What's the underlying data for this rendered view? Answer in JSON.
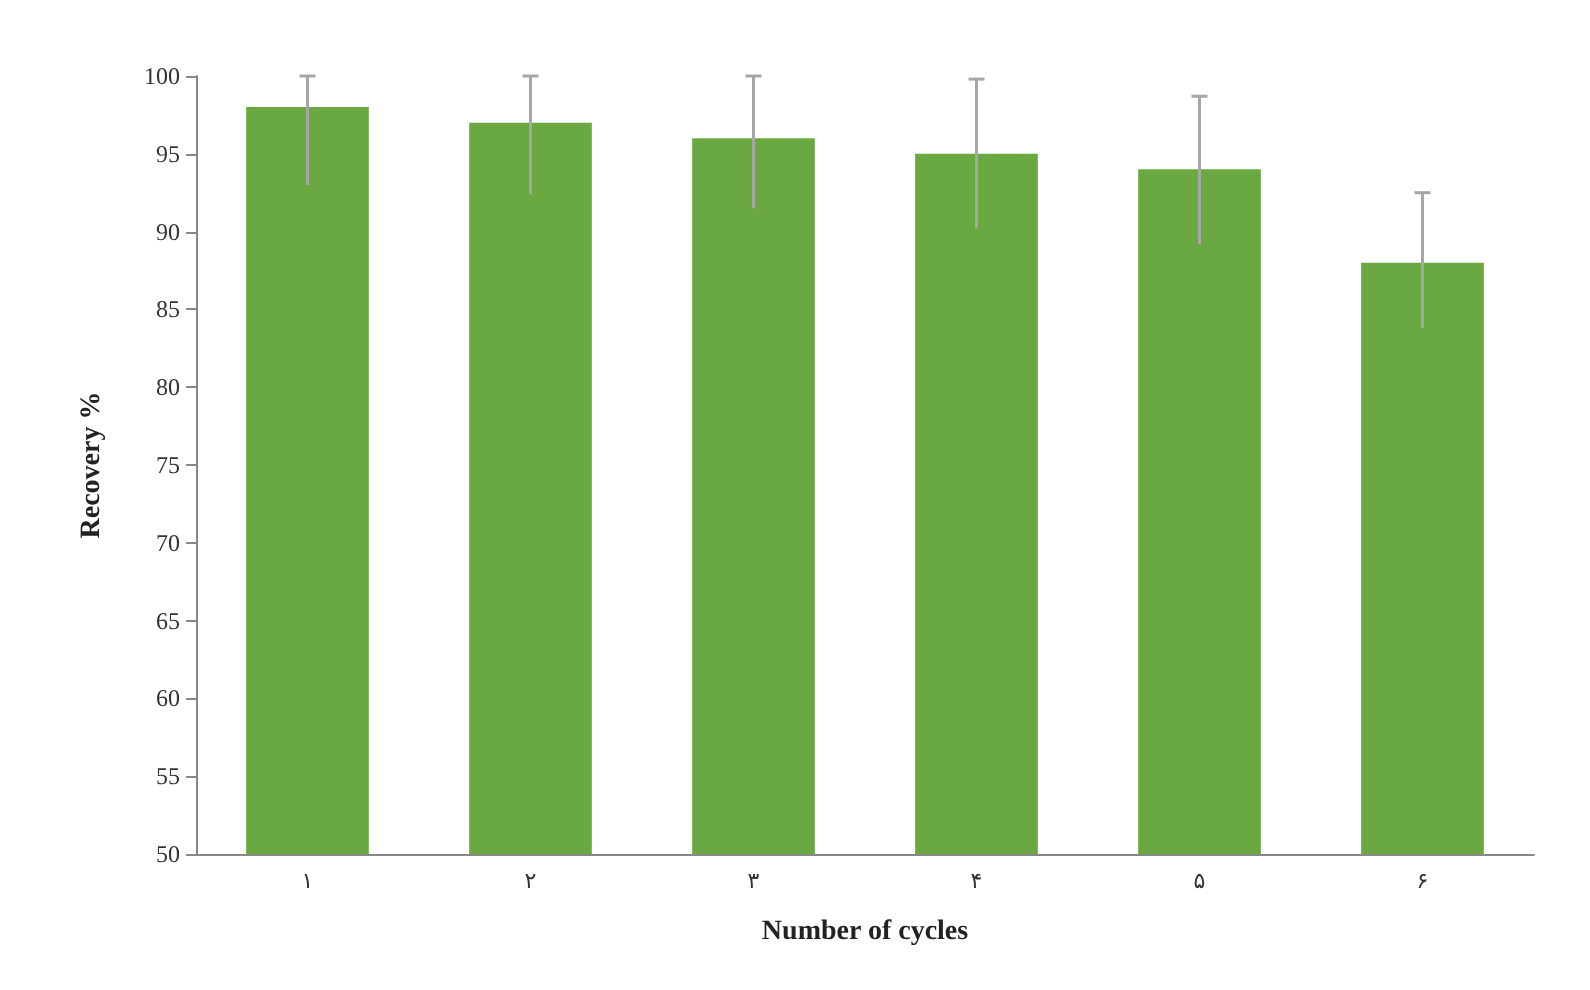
{
  "chart_data": {
    "type": "bar",
    "xlabel": "Number of cycles",
    "ylabel": "Recovery %",
    "categories": [
      "۱",
      "۲",
      "۳",
      "۴",
      "۵",
      "۶"
    ],
    "values": [
      98,
      97,
      96,
      95,
      94,
      88
    ],
    "errors": [
      [
        93,
        100
      ],
      [
        92.4,
        100
      ],
      [
        91.5,
        100
      ],
      [
        90.2,
        99.8
      ],
      [
        89.2,
        98.7
      ],
      [
        83.8,
        92.5
      ]
    ],
    "color": "#6aa842",
    "ylim": [
      50,
      100
    ],
    "yticks": [
      50,
      55,
      60,
      65,
      70,
      75,
      80,
      85,
      90,
      95,
      100
    ],
    "grid": false
  }
}
